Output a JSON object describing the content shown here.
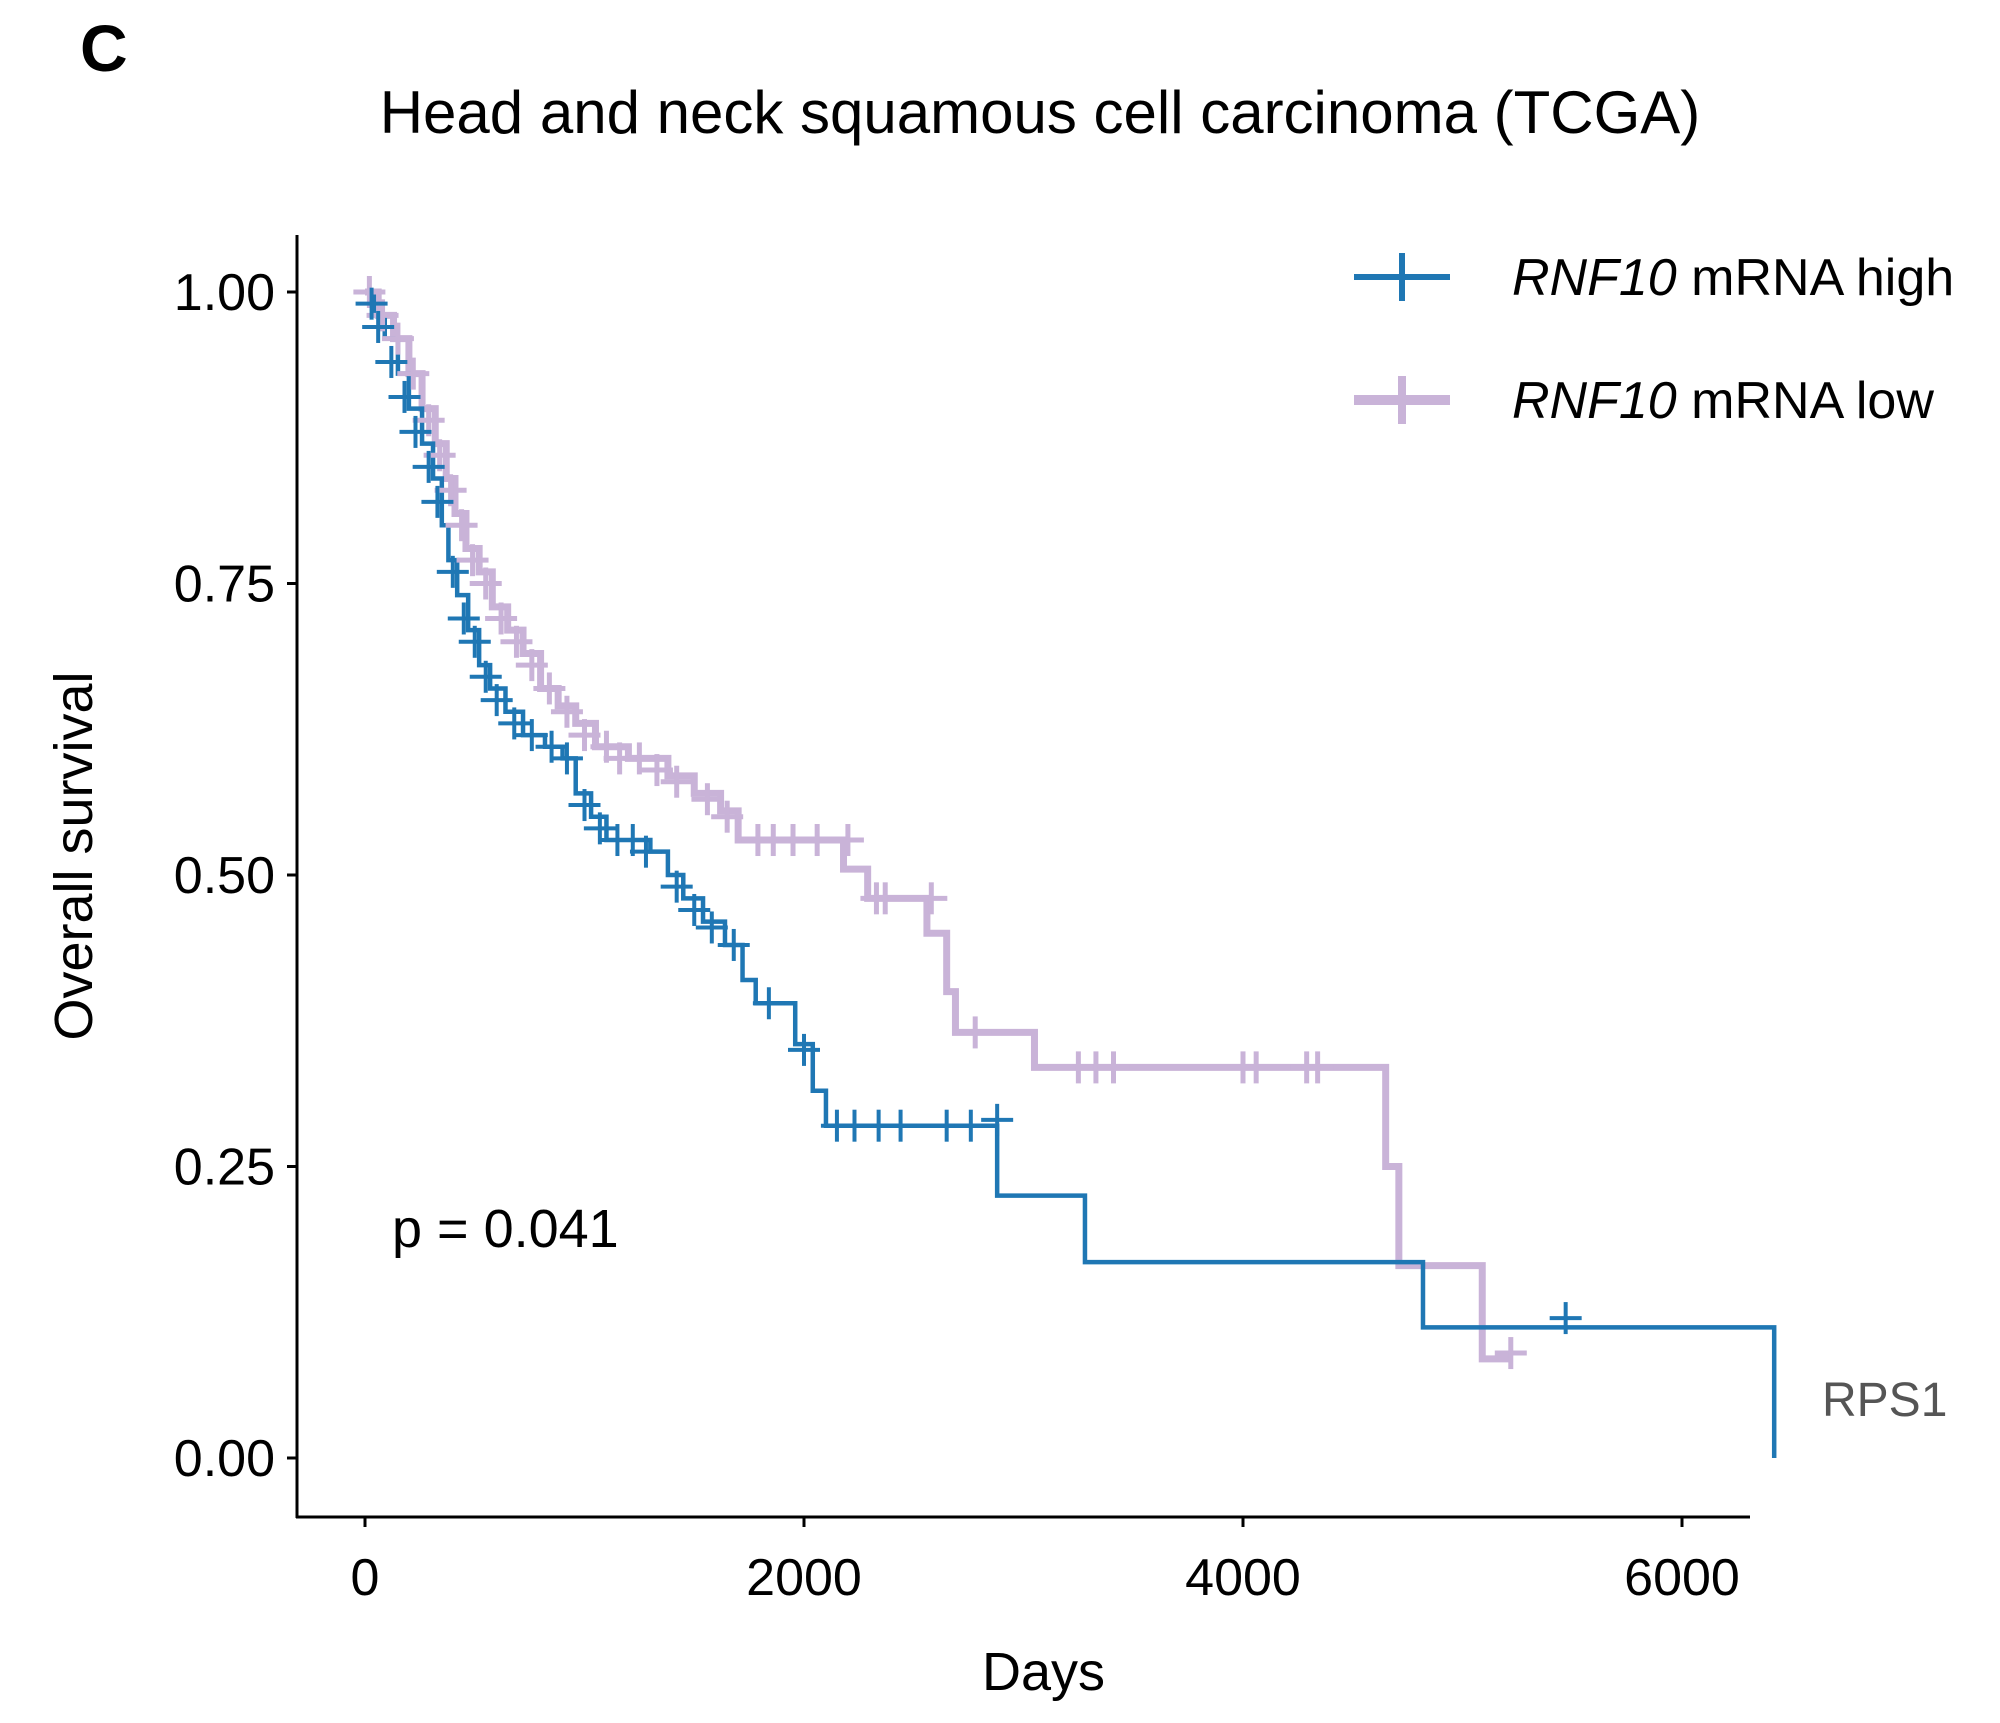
{
  "panel_letter": "C",
  "side_label": "RPS1",
  "chart_data": {
    "type": "line",
    "subtype": "kaplan-meier",
    "title": "Head and neck squamous cell carcinoma (TCGA)",
    "xlabel": "Days",
    "ylabel": "Overall survival",
    "xlim": [
      -300,
      6300
    ],
    "ylim": [
      -0.05,
      1.05
    ],
    "xticks": [
      0,
      2000,
      4000,
      6000
    ],
    "xtick_labels": [
      "0",
      "2000",
      "4000",
      "6000"
    ],
    "yticks": [
      0,
      0.25,
      0.5,
      0.75,
      1.0
    ],
    "ytick_labels": [
      "0.00",
      "0.25",
      "0.50",
      "0.75",
      "1.00"
    ],
    "grid": false,
    "legend_position": "top-right",
    "annotation": "p = 0.041",
    "series": [
      {
        "name_italic": "RNF10",
        "name_rest": " mRNA high",
        "name": "RNF10 mRNA high",
        "color": "#1f77b4",
        "steps": [
          [
            0,
            1.0
          ],
          [
            40,
            0.98
          ],
          [
            90,
            0.96
          ],
          [
            150,
            0.93
          ],
          [
            200,
            0.9
          ],
          [
            260,
            0.87
          ],
          [
            310,
            0.84
          ],
          [
            350,
            0.8
          ],
          [
            380,
            0.77
          ],
          [
            420,
            0.74
          ],
          [
            470,
            0.71
          ],
          [
            520,
            0.68
          ],
          [
            570,
            0.66
          ],
          [
            640,
            0.64
          ],
          [
            720,
            0.62
          ],
          [
            820,
            0.61
          ],
          [
            900,
            0.6
          ],
          [
            960,
            0.57
          ],
          [
            1030,
            0.55
          ],
          [
            1100,
            0.53
          ],
          [
            1300,
            0.52
          ],
          [
            1380,
            0.5
          ],
          [
            1450,
            0.48
          ],
          [
            1540,
            0.46
          ],
          [
            1640,
            0.44
          ],
          [
            1720,
            0.41
          ],
          [
            1780,
            0.39
          ],
          [
            1960,
            0.355
          ],
          [
            2040,
            0.315
          ],
          [
            2100,
            0.285
          ],
          [
            2880,
            0.225
          ],
          [
            3280,
            0.168
          ],
          [
            4820,
            0.112
          ],
          [
            6420,
            0.0
          ]
        ],
        "end": 6420,
        "censor": [
          [
            30,
            0.99
          ],
          [
            60,
            0.97
          ],
          [
            120,
            0.94
          ],
          [
            180,
            0.91
          ],
          [
            230,
            0.88
          ],
          [
            290,
            0.85
          ],
          [
            330,
            0.82
          ],
          [
            400,
            0.76
          ],
          [
            450,
            0.72
          ],
          [
            500,
            0.7
          ],
          [
            550,
            0.67
          ],
          [
            600,
            0.65
          ],
          [
            680,
            0.63
          ],
          [
            760,
            0.62
          ],
          [
            850,
            0.61
          ],
          [
            920,
            0.6
          ],
          [
            1000,
            0.56
          ],
          [
            1070,
            0.54
          ],
          [
            1150,
            0.53
          ],
          [
            1220,
            0.53
          ],
          [
            1280,
            0.52
          ],
          [
            1420,
            0.49
          ],
          [
            1500,
            0.47
          ],
          [
            1580,
            0.455
          ],
          [
            1680,
            0.44
          ],
          [
            1840,
            0.39
          ],
          [
            2000,
            0.35
          ],
          [
            2150,
            0.285
          ],
          [
            2230,
            0.285
          ],
          [
            2340,
            0.285
          ],
          [
            2440,
            0.285
          ],
          [
            2650,
            0.285
          ],
          [
            2760,
            0.285
          ],
          [
            2880,
            0.29
          ],
          [
            5470,
            0.12
          ]
        ]
      },
      {
        "name_italic": "RNF10",
        "name_rest": " mRNA low",
        "name": "RNF10 mRNA low",
        "color": "#c9b3d8",
        "steps": [
          [
            0,
            1.0
          ],
          [
            60,
            0.98
          ],
          [
            130,
            0.96
          ],
          [
            200,
            0.93
          ],
          [
            260,
            0.9
          ],
          [
            320,
            0.87
          ],
          [
            370,
            0.84
          ],
          [
            410,
            0.81
          ],
          [
            460,
            0.78
          ],
          [
            520,
            0.76
          ],
          [
            580,
            0.73
          ],
          [
            650,
            0.71
          ],
          [
            720,
            0.69
          ],
          [
            800,
            0.66
          ],
          [
            880,
            0.645
          ],
          [
            960,
            0.63
          ],
          [
            1050,
            0.61
          ],
          [
            1200,
            0.6
          ],
          [
            1380,
            0.585
          ],
          [
            1500,
            0.57
          ],
          [
            1620,
            0.555
          ],
          [
            1700,
            0.53
          ],
          [
            2180,
            0.505
          ],
          [
            2290,
            0.48
          ],
          [
            2560,
            0.45
          ],
          [
            2650,
            0.4
          ],
          [
            2690,
            0.365
          ],
          [
            3050,
            0.335
          ],
          [
            4650,
            0.25
          ],
          [
            4710,
            0.165
          ],
          [
            5090,
            0.085
          ],
          [
            5220,
            0.085
          ]
        ],
        "end": 5220,
        "censor": [
          [
            20,
            1.0
          ],
          [
            80,
            0.98
          ],
          [
            150,
            0.96
          ],
          [
            220,
            0.93
          ],
          [
            290,
            0.89
          ],
          [
            340,
            0.86
          ],
          [
            390,
            0.83
          ],
          [
            440,
            0.8
          ],
          [
            490,
            0.77
          ],
          [
            550,
            0.75
          ],
          [
            620,
            0.72
          ],
          [
            690,
            0.7
          ],
          [
            760,
            0.68
          ],
          [
            840,
            0.66
          ],
          [
            920,
            0.64
          ],
          [
            1000,
            0.62
          ],
          [
            1100,
            0.61
          ],
          [
            1160,
            0.6
          ],
          [
            1250,
            0.6
          ],
          [
            1330,
            0.59
          ],
          [
            1420,
            0.58
          ],
          [
            1560,
            0.565
          ],
          [
            1650,
            0.55
          ],
          [
            1790,
            0.53
          ],
          [
            1860,
            0.53
          ],
          [
            1950,
            0.53
          ],
          [
            2060,
            0.53
          ],
          [
            2200,
            0.53
          ],
          [
            2330,
            0.48
          ],
          [
            2370,
            0.48
          ],
          [
            2580,
            0.48
          ],
          [
            2780,
            0.365
          ],
          [
            3250,
            0.335
          ],
          [
            3330,
            0.335
          ],
          [
            3410,
            0.335
          ],
          [
            4000,
            0.335
          ],
          [
            4060,
            0.335
          ],
          [
            4290,
            0.335
          ],
          [
            4340,
            0.335
          ],
          [
            5220,
            0.09
          ]
        ]
      }
    ]
  }
}
